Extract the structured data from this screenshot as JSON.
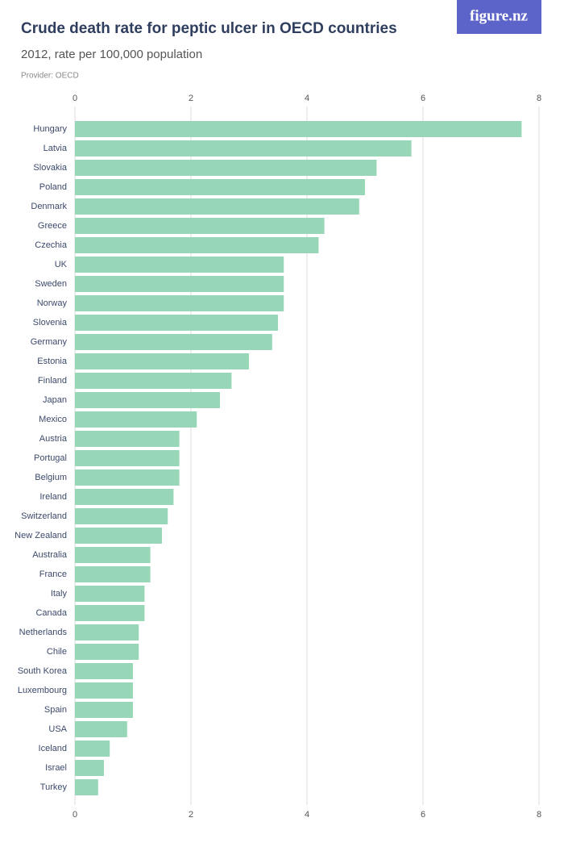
{
  "brand": "figure.nz",
  "chart_data": {
    "type": "bar",
    "orientation": "horizontal",
    "title": "Crude death rate for peptic ulcer in OECD countries",
    "subtitle": "2012, rate per 100,000 population",
    "provider": "Provider: OECD",
    "categories": [
      "Hungary",
      "Latvia",
      "Slovakia",
      "Poland",
      "Denmark",
      "Greece",
      "Czechia",
      "UK",
      "Sweden",
      "Norway",
      "Slovenia",
      "Germany",
      "Estonia",
      "Finland",
      "Japan",
      "Mexico",
      "Austria",
      "Portugal",
      "Belgium",
      "Ireland",
      "Switzerland",
      "New Zealand",
      "Australia",
      "France",
      "Italy",
      "Canada",
      "Netherlands",
      "Chile",
      "South Korea",
      "Luxembourg",
      "Spain",
      "USA",
      "Iceland",
      "Israel",
      "Turkey"
    ],
    "values": [
      7.7,
      5.8,
      5.2,
      5.0,
      4.9,
      4.3,
      4.2,
      3.6,
      3.6,
      3.6,
      3.5,
      3.4,
      3.0,
      2.7,
      2.5,
      2.1,
      1.8,
      1.8,
      1.8,
      1.7,
      1.6,
      1.5,
      1.3,
      1.3,
      1.2,
      1.2,
      1.1,
      1.1,
      1.0,
      1.0,
      1.0,
      0.9,
      0.6,
      0.5,
      0.4
    ],
    "color": "#97d7b8",
    "xlim": [
      0,
      8
    ],
    "xticks": [
      0,
      2,
      4,
      6,
      8
    ],
    "grid": true
  }
}
